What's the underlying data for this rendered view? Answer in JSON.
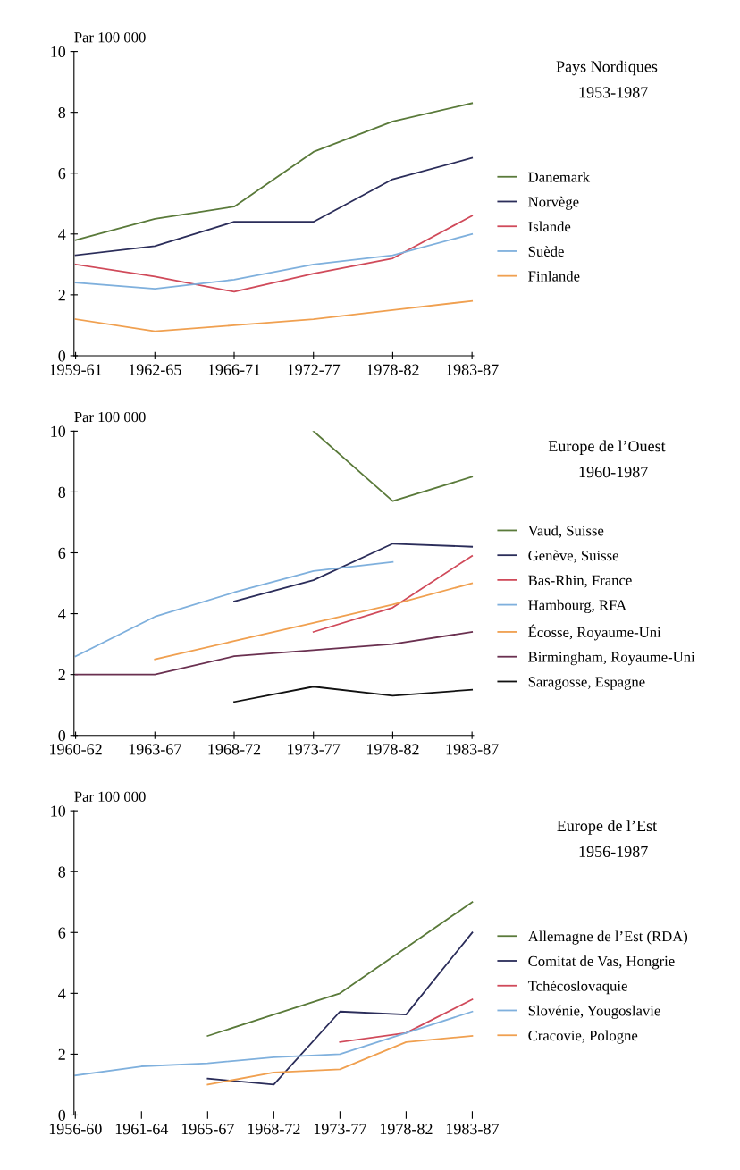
{
  "chart_data": [
    {
      "type": "line",
      "annotations": [
        "Pays Nordiques",
        "1953-1987"
      ],
      "ylabel": "Par 100 000",
      "categories": [
        "1959-61",
        "1962-65",
        "1966-71",
        "1972-77",
        "1978-82",
        "1983-87"
      ],
      "ylim": [
        0,
        10
      ],
      "yticks": [
        0,
        2,
        4,
        6,
        8,
        10
      ],
      "grid": false,
      "legend": "right",
      "series": [
        {
          "name": "Danemark",
          "color": "#5a7a3a",
          "values": [
            3.8,
            4.5,
            4.9,
            6.7,
            7.7,
            8.3
          ]
        },
        {
          "name": "Norvège",
          "color": "#2b2d5a",
          "values": [
            3.3,
            3.6,
            4.4,
            4.4,
            5.8,
            6.5
          ]
        },
        {
          "name": "Islande",
          "color": "#d04a5a",
          "values": [
            3.0,
            2.6,
            2.1,
            2.7,
            3.2,
            4.6
          ]
        },
        {
          "name": "Suède",
          "color": "#7fb0dd",
          "values": [
            2.4,
            2.2,
            2.5,
            3.0,
            3.3,
            4.0
          ]
        },
        {
          "name": "Finlande",
          "color": "#f0a050",
          "values": [
            1.2,
            0.8,
            1.0,
            1.2,
            1.5,
            1.8
          ]
        }
      ]
    },
    {
      "type": "line",
      "annotations": [
        "Europe de l’Ouest",
        "1960-1987"
      ],
      "ylabel": "Par 100 000",
      "categories": [
        "1960-62",
        "1963-67",
        "1968-72",
        "1973-77",
        "1978-82",
        "1983-87"
      ],
      "ylim": [
        0,
        10
      ],
      "yticks": [
        0,
        2,
        4,
        6,
        8,
        10
      ],
      "grid": false,
      "legend": "right",
      "series": [
        {
          "name": "Vaud, Suisse",
          "color": "#5a7a3a",
          "values": [
            null,
            null,
            null,
            10.0,
            7.7,
            8.5
          ]
        },
        {
          "name": "Genève, Suisse",
          "color": "#2b2d5a",
          "values": [
            null,
            null,
            4.4,
            5.1,
            6.3,
            6.2
          ]
        },
        {
          "name": "Bas-Rhin, France",
          "color": "#d04a5a",
          "values": [
            null,
            null,
            null,
            3.4,
            4.2,
            5.9
          ]
        },
        {
          "name": "Hambourg, RFA",
          "color": "#7fb0dd",
          "values": [
            2.6,
            3.9,
            4.7,
            5.4,
            5.7,
            null
          ]
        },
        {
          "name": "Écosse, Royaume-Uni",
          "color": "#f0a050",
          "values": [
            null,
            2.5,
            3.1,
            3.7,
            4.3,
            5.0
          ]
        },
        {
          "name": "Birmingham, Royaume-Uni",
          "color": "#6a3050",
          "values": [
            2.0,
            2.0,
            2.6,
            2.8,
            3.0,
            3.4
          ]
        },
        {
          "name": "Saragosse, Espagne",
          "color": "#111111",
          "values": [
            null,
            null,
            1.1,
            1.6,
            1.3,
            1.5
          ]
        }
      ]
    },
    {
      "type": "line",
      "annotations": [
        "Europe de l’Est",
        "1956-1987"
      ],
      "ylabel": "Par 100 000",
      "categories": [
        "1956-60",
        "1961-64",
        "1965-67",
        "1968-72",
        "1973-77",
        "1978-82",
        "1983-87"
      ],
      "ylim": [
        0,
        10
      ],
      "yticks": [
        0,
        2,
        4,
        6,
        8,
        10
      ],
      "grid": false,
      "legend": "right",
      "series": [
        {
          "name": "Allemagne de l’Est (RDA)",
          "color": "#5a7a3a",
          "values": [
            null,
            null,
            2.6,
            3.3,
            4.0,
            5.5,
            7.0
          ]
        },
        {
          "name": "Comitat de Vas, Hongrie",
          "color": "#2b2d5a",
          "values": [
            null,
            null,
            1.2,
            1.0,
            3.4,
            3.3,
            6.0
          ]
        },
        {
          "name": "Tchécoslovaquie",
          "color": "#d04a5a",
          "values": [
            null,
            null,
            null,
            null,
            2.4,
            2.7,
            3.8
          ]
        },
        {
          "name": "Slovénie, Yougoslavie",
          "color": "#7fb0dd",
          "values": [
            1.3,
            1.6,
            1.7,
            1.9,
            2.0,
            2.7,
            3.4
          ]
        },
        {
          "name": "Cracovie, Pologne",
          "color": "#f0a050",
          "values": [
            null,
            null,
            1.0,
            1.4,
            1.5,
            2.4,
            2.6
          ]
        }
      ]
    }
  ]
}
